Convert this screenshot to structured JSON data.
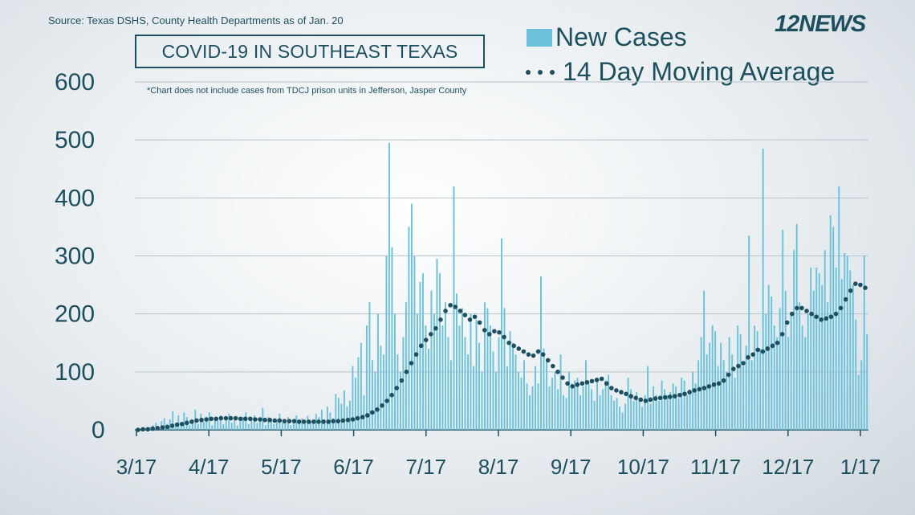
{
  "source": "Source: Texas DSHS, County Health Departments as of Jan. 20",
  "logo_text": "12NEWS",
  "colors": {
    "bars": "#6cc2db",
    "dots": "#1d4f5f",
    "text": "#1d4f5f",
    "grid": "#b8c4ca"
  },
  "chart_data": {
    "type": "bar",
    "title": "COVID-19 IN SOUTHEAST TEXAS",
    "note": "*Chart does not include cases from TDCJ prison units in Jefferson, Jasper County",
    "xlabel": "",
    "ylabel": "",
    "ylim": [
      0,
      600
    ],
    "yticks": [
      0,
      100,
      200,
      300,
      400,
      500,
      600
    ],
    "x_tick_labels": [
      "3/17",
      "4/17",
      "5/17",
      "6/17",
      "7/17",
      "8/17",
      "9/17",
      "10/17",
      "11/17",
      "12/17",
      "1/17"
    ],
    "x_start": "3/17",
    "x_end": "1/17",
    "grid": "horizontal",
    "legend": "top-right",
    "series": [
      {
        "name": "New Cases",
        "style": "bar",
        "values": [
          2,
          2,
          3,
          3,
          4,
          5,
          8,
          12,
          4,
          15,
          20,
          10,
          18,
          32,
          6,
          25,
          12,
          30,
          22,
          8,
          18,
          35,
          10,
          28,
          14,
          20,
          30,
          8,
          22,
          16,
          25,
          10,
          18,
          28,
          12,
          20,
          8,
          15,
          22,
          30,
          10,
          18,
          25,
          12,
          20,
          38,
          8,
          22,
          15,
          10,
          18,
          28,
          12,
          16,
          22,
          8,
          18,
          25,
          12,
          20,
          10,
          24,
          15,
          18,
          28,
          22,
          35,
          18,
          40,
          30,
          20,
          62,
          55,
          45,
          68,
          40,
          50,
          110,
          90,
          125,
          150,
          60,
          180,
          220,
          120,
          100,
          200,
          145,
          130,
          300,
          495,
          315,
          200,
          130,
          100,
          160,
          220,
          350,
          390,
          300,
          200,
          255,
          270,
          180,
          140,
          240,
          200,
          295,
          270,
          180,
          220,
          160,
          120,
          420,
          235,
          180,
          210,
          160,
          130,
          200,
          110,
          190,
          150,
          100,
          220,
          210,
          180,
          135,
          100,
          160,
          330,
          210,
          110,
          170,
          150,
          130,
          100,
          90,
          120,
          80,
          60,
          75,
          110,
          80,
          265,
          140,
          120,
          75,
          90,
          100,
          70,
          130,
          60,
          55,
          100,
          80,
          85,
          90,
          60,
          75,
          120,
          80,
          70,
          50,
          90,
          60,
          70,
          85,
          95,
          60,
          50,
          55,
          40,
          30,
          45,
          90,
          70,
          50,
          65,
          55,
          40,
          60,
          110,
          45,
          75,
          60,
          50,
          85,
          70,
          60,
          65,
          80,
          75,
          55,
          90,
          85,
          60,
          70,
          100,
          80,
          120,
          160,
          240,
          130,
          150,
          180,
          170,
          110,
          150,
          120,
          100,
          160,
          130,
          90,
          180,
          165,
          110,
          145,
          335,
          120,
          180,
          170,
          140,
          485,
          200,
          250,
          230,
          180,
          160,
          210,
          345,
          240,
          160,
          200,
          310,
          355,
          220,
          180,
          160,
          200,
          280,
          240,
          280,
          270,
          250,
          310,
          220,
          370,
          350,
          280,
          420,
          260,
          305,
          300,
          275,
          250,
          190,
          95,
          120,
          300,
          165
        ]
      },
      {
        "name": "14 Day Moving Average",
        "style": "dots",
        "values": [
          0,
          1,
          1,
          2,
          3,
          4,
          5,
          7,
          9,
          10,
          12,
          14,
          16,
          17,
          18,
          19,
          19,
          20,
          20,
          20,
          20,
          19,
          19,
          19,
          18,
          18,
          17,
          17,
          16,
          16,
          15,
          15,
          15,
          14,
          14,
          14,
          14,
          14,
          14,
          14,
          15,
          15,
          16,
          17,
          18,
          20,
          22,
          25,
          30,
          35,
          42,
          50,
          60,
          72,
          85,
          100,
          115,
          130,
          145,
          155,
          165,
          175,
          190,
          205,
          215,
          212,
          205,
          198,
          190,
          195,
          185,
          172,
          165,
          170,
          168,
          160,
          150,
          145,
          140,
          135,
          130,
          128,
          135,
          130,
          120,
          110,
          100,
          90,
          80,
          75,
          78,
          80,
          82,
          84,
          86,
          88,
          80,
          72,
          68,
          65,
          62,
          58,
          55,
          52,
          50,
          52,
          54,
          55,
          56,
          57,
          58,
          60,
          62,
          65,
          68,
          70,
          72,
          75,
          78,
          80,
          85,
          95,
          105,
          110,
          115,
          125,
          130,
          138,
          135,
          140,
          145,
          150,
          165,
          185,
          200,
          210,
          210,
          205,
          200,
          195,
          190,
          192,
          195,
          200,
          210,
          225,
          240,
          252,
          250,
          245
        ]
      }
    ]
  }
}
